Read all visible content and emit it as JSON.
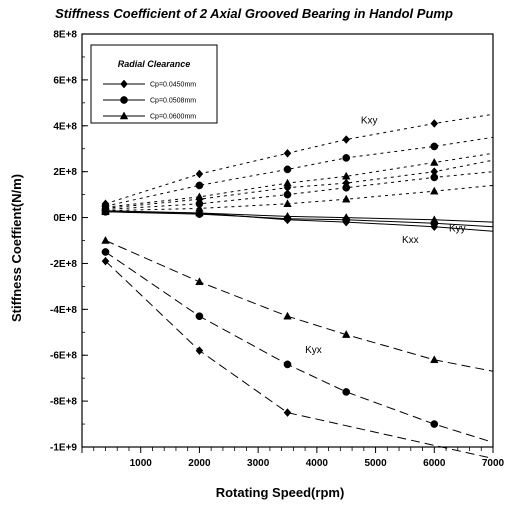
{
  "chart_data": {
    "type": "line",
    "title": "Stiffness Coefficient of 2 Axial Grooved Bearing in Handol Pump",
    "xlabel": "Rotating Speed(rpm)",
    "ylabel": "Stiffness Coeffient(N/m)",
    "xlim": [
      0,
      7000
    ],
    "ylim": [
      -1000000000,
      800000000
    ],
    "x_ticks": [
      1000,
      2000,
      3000,
      4000,
      5000,
      6000,
      7000
    ],
    "y_ticks": [
      -1000000000,
      -800000000,
      -600000000,
      -400000000,
      -200000000,
      0,
      200000000,
      400000000,
      600000000,
      800000000
    ],
    "y_tick_labels": [
      "-1E+9",
      "-8E+8",
      "-6E+8",
      "-4E+8",
      "-2E+8",
      "0E+0",
      "2E+8",
      "4E+8",
      "6E+8",
      "8E+8"
    ],
    "x_tick_labels": [
      "1000",
      "2000",
      "3000",
      "4000",
      "5000",
      "6000",
      "7000"
    ],
    "grid": false,
    "legend": {
      "title": "Radial Clearance",
      "placement": "top-left",
      "entries": [
        {
          "label": "Cp=0.0450mm",
          "marker": "diamond"
        },
        {
          "label": "Cp=0.0508mm",
          "marker": "circle"
        },
        {
          "label": "Cp=0.0600mm",
          "marker": "triangle"
        }
      ]
    },
    "annotations": [
      {
        "text": "Kxy",
        "x": 4750,
        "y": 410000000
      },
      {
        "text": "Kyy",
        "x": 6250,
        "y": -60000000
      },
      {
        "text": "Kxx",
        "x": 5450,
        "y": -110000000
      },
      {
        "text": "Kyx",
        "x": 3800,
        "y": -590000000
      }
    ],
    "series": [
      {
        "group": "Kxy",
        "clearance": "Cp=0.0450mm",
        "marker": "diamond",
        "dash": "short",
        "points": [
          [
            400,
            60000000
          ],
          [
            2000,
            190000000
          ],
          [
            3500,
            280000000
          ],
          [
            4500,
            340000000
          ],
          [
            6000,
            410000000
          ],
          [
            7000,
            450000000
          ]
        ]
      },
      {
        "group": "Kxy",
        "clearance": "Cp=0.0508mm",
        "marker": "circle",
        "dash": "short",
        "points": [
          [
            400,
            50000000
          ],
          [
            2000,
            140000000
          ],
          [
            3500,
            210000000
          ],
          [
            4500,
            260000000
          ],
          [
            6000,
            310000000
          ],
          [
            7000,
            350000000
          ]
        ]
      },
      {
        "group": "Kxy",
        "clearance": "Cp=0.0600mm",
        "marker": "triangle",
        "dash": "short",
        "points": [
          [
            400,
            45000000
          ],
          [
            2000,
            90000000
          ],
          [
            3500,
            150000000
          ],
          [
            4500,
            180000000
          ],
          [
            6000,
            240000000
          ],
          [
            7000,
            280000000
          ]
        ]
      },
      {
        "group": "Kyy",
        "clearance": "Cp=0.0450mm",
        "marker": "diamond",
        "dash": "short",
        "points": [
          [
            400,
            40000000
          ],
          [
            2000,
            80000000
          ],
          [
            3500,
            130000000
          ],
          [
            4500,
            150000000
          ],
          [
            6000,
            200000000
          ],
          [
            7000,
            250000000
          ]
        ]
      },
      {
        "group": "Kyy",
        "clearance": "Cp=0.0508mm",
        "marker": "circle",
        "dash": "short",
        "points": [
          [
            400,
            35000000
          ],
          [
            2000,
            60000000
          ],
          [
            3500,
            100000000
          ],
          [
            4500,
            130000000
          ],
          [
            6000,
            175000000
          ],
          [
            7000,
            200000000
          ]
        ]
      },
      {
        "group": "Kyy",
        "clearance": "Cp=0.0600mm",
        "marker": "triangle",
        "dash": "short",
        "points": [
          [
            400,
            30000000
          ],
          [
            2000,
            40000000
          ],
          [
            3500,
            60000000
          ],
          [
            4500,
            80000000
          ],
          [
            6000,
            115000000
          ],
          [
            7000,
            140000000
          ]
        ]
      },
      {
        "group": "Kxx",
        "clearance": "Cp=0.0450mm",
        "marker": "diamond",
        "dash": "solid",
        "points": [
          [
            400,
            30000000
          ],
          [
            2000,
            20000000
          ],
          [
            3500,
            -10000000
          ],
          [
            4500,
            -20000000
          ],
          [
            6000,
            -40000000
          ],
          [
            7000,
            -60000000
          ]
        ]
      },
      {
        "group": "Kxx",
        "clearance": "Cp=0.0508mm",
        "marker": "circle",
        "dash": "solid",
        "points": [
          [
            400,
            25000000
          ],
          [
            2000,
            15000000
          ],
          [
            3500,
            -5000000
          ],
          [
            4500,
            -10000000
          ],
          [
            6000,
            -25000000
          ],
          [
            7000,
            -40000000
          ]
        ]
      },
      {
        "group": "Kxx",
        "clearance": "Cp=0.0600mm",
        "marker": "triangle",
        "dash": "solid",
        "points": [
          [
            400,
            25000000
          ],
          [
            2000,
            20000000
          ],
          [
            3500,
            5000000
          ],
          [
            4500,
            0
          ],
          [
            6000,
            -10000000
          ],
          [
            7000,
            -20000000
          ]
        ]
      },
      {
        "group": "Kyx",
        "clearance": "Cp=0.0450mm",
        "marker": "diamond",
        "dash": "long",
        "points": [
          [
            400,
            -190000000
          ],
          [
            2000,
            -580000000
          ],
          [
            3500,
            -850000000
          ],
          [
            7000,
            -1050000000
          ]
        ]
      },
      {
        "group": "Kyx",
        "clearance": "Cp=0.0508mm",
        "marker": "circle",
        "dash": "long",
        "points": [
          [
            400,
            -150000000
          ],
          [
            2000,
            -430000000
          ],
          [
            3500,
            -640000000
          ],
          [
            4500,
            -760000000
          ],
          [
            6000,
            -900000000
          ],
          [
            7000,
            -980000000
          ]
        ]
      },
      {
        "group": "Kyx",
        "clearance": "Cp=0.0600mm",
        "marker": "triangle",
        "dash": "long",
        "points": [
          [
            400,
            -100000000
          ],
          [
            2000,
            -280000000
          ],
          [
            3500,
            -430000000
          ],
          [
            4500,
            -510000000
          ],
          [
            6000,
            -620000000
          ],
          [
            7000,
            -670000000
          ]
        ]
      }
    ]
  }
}
